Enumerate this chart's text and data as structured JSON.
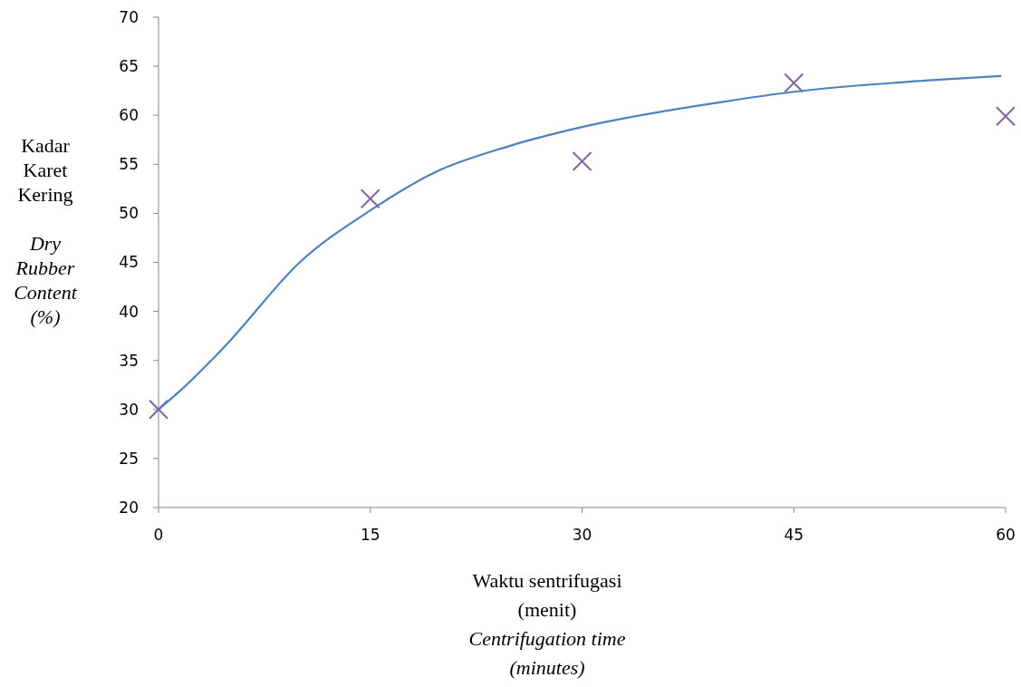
{
  "chart_data": {
    "type": "scatter",
    "xlabel": "Waktu sentrifugasi\n(menit)\n\nCentrifugation time\n(minutes)",
    "ylabel": "Kadar\nKaret\nKering\n\nDry\nRubber\nContent\n(%)",
    "xlim": [
      0,
      60
    ],
    "xticks": [
      0,
      15,
      30,
      45,
      60
    ],
    "ylim": [
      20,
      70
    ],
    "yticks": [
      20,
      25,
      30,
      35,
      40,
      45,
      50,
      55,
      60,
      65,
      70
    ],
    "grid": false,
    "series": [
      {
        "color": "#8064a2",
        "marker": "cross",
        "x": [
          0,
          15,
          30,
          45,
          60
        ],
        "values": [
          30,
          51.5,
          55.3,
          63.3,
          59.9
        ]
      },
      {
        "type": "line",
        "color": "#4f81bd",
        "marker": "none",
        "x": [
          0,
          1.6,
          4.8,
          10,
          15,
          19.6,
          24.7,
          30,
          40.1,
          45,
          53,
          59.7
        ],
        "values": [
          30,
          32,
          36.6,
          45,
          50.3,
          54.2,
          56.8,
          58.8,
          61.4,
          62.4,
          63.4,
          64
        ]
      }
    ]
  }
}
